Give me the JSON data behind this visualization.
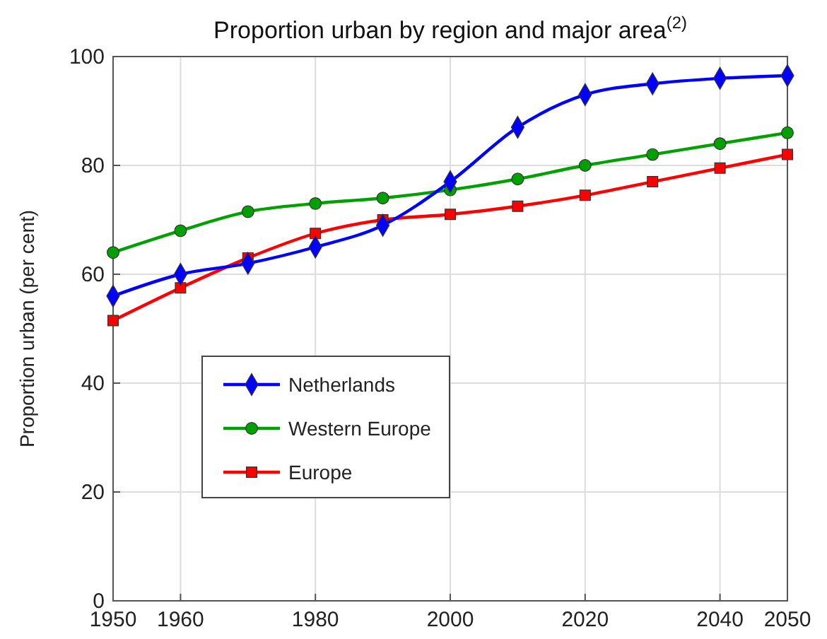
{
  "chart_data": {
    "type": "line",
    "title": "Proportion urban by region and major area$^{(2)}$",
    "ylabel": "Proportion urban (per cent)",
    "x": [
      1950,
      1960,
      1970,
      1980,
      1990,
      2000,
      2010,
      2020,
      2030,
      2040,
      2050
    ],
    "series": [
      {
        "name": "Netherlands",
        "color": "#0000ff",
        "marker": "diamond",
        "values": [
          56,
          60,
          62,
          65,
          69,
          77,
          87,
          93,
          95,
          96,
          96.5
        ]
      },
      {
        "name": "Western Europe",
        "color": "#00a000",
        "marker": "circle",
        "values": [
          64,
          68,
          71.5,
          73,
          74,
          75.5,
          77.5,
          80,
          82,
          84,
          86
        ]
      },
      {
        "name": "Europe",
        "color": "#ff0000",
        "marker": "square",
        "values": [
          51.5,
          57.5,
          63,
          67.5,
          70,
          71,
          72.5,
          74.5,
          77,
          79.5,
          82
        ]
      }
    ],
    "xlim": [
      1950,
      2050
    ],
    "xticks": [
      1950,
      1960,
      1980,
      2000,
      2020,
      2040,
      2050
    ],
    "ylim": [
      0,
      100
    ],
    "yticks": [
      0,
      20,
      40,
      60,
      80,
      100
    ],
    "grid": true,
    "legend": "bottom left",
    "line_style": "solid"
  }
}
